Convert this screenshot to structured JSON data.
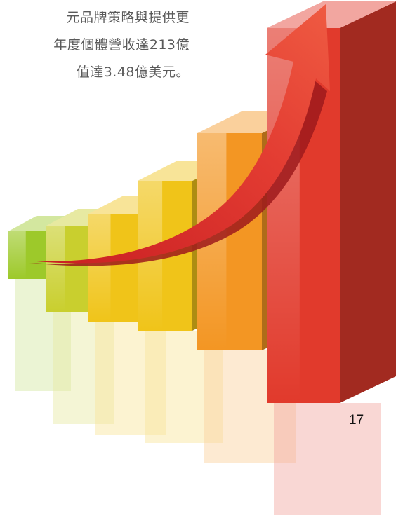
{
  "body_text": {
    "lines": [
      "元品牌策略與提供更",
      "年度個體營收達213億",
      "值達3.48億美元。"
    ]
  },
  "page_number": "17",
  "illustration": {
    "subject": "rising-bar-chart-with-upward-arrow",
    "colors": {
      "bar_green": "#9dc92a",
      "bar_yellow_green": "#c9cf2e",
      "bar_yellow": "#f0c419",
      "bar_orange": "#f39623",
      "bar_orange_red": "#ee6b24",
      "bar_red": "#e13a2c",
      "arrow": "#e0302b"
    }
  }
}
